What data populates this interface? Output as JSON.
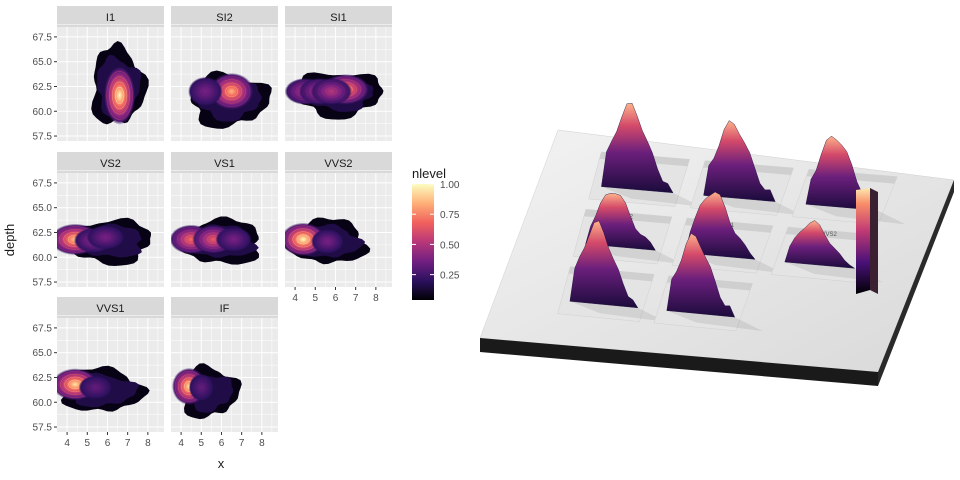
{
  "chart_data": [
    {
      "type": "heatmap",
      "kind": "faceted 2D density contours (filled)",
      "xlabel": "x",
      "ylabel": "depth",
      "xticks": [
        4,
        5,
        6,
        7,
        8
      ],
      "yticks": [
        57.5,
        60.0,
        62.5,
        65.0,
        67.5
      ],
      "xlim": [
        3.5,
        8.8
      ],
      "ylim": [
        57,
        68.5
      ],
      "grid": true,
      "legend": {
        "title": "nlevel",
        "ticks": [
          0.25,
          0.5,
          0.75,
          1.0
        ],
        "tick_labels": [
          "0.25",
          "0.50",
          "0.75",
          "1.00"
        ],
        "placement": "right",
        "colors": [
          "#000004",
          "#2c115f",
          "#721f81",
          "#b73779",
          "#f1605d",
          "#feb078",
          "#fcfdbf"
        ]
      },
      "facets": [
        {
          "label": "I1",
          "peaks": [
            {
              "x": 6.6,
              "y": 61.6,
              "level": 1.0
            }
          ],
          "extent": {
            "x": [
              5.2,
              7.8
            ],
            "y": [
              58.6,
              66.5
            ]
          }
        },
        {
          "label": "SI2",
          "peaks": [
            {
              "x": 6.5,
              "y": 62.0,
              "level": 0.85
            },
            {
              "x": 5.2,
              "y": 62.0,
              "level": 0.35
            }
          ],
          "extent": {
            "x": [
              4.4,
              8.3
            ],
            "y": [
              58.5,
              63.8
            ]
          }
        },
        {
          "label": "SI1",
          "peaks": [
            {
              "x": 6.5,
              "y": 62.2,
              "level": 0.8
            },
            {
              "x": 4.5,
              "y": 62.0,
              "level": 0.5
            },
            {
              "x": 5.2,
              "y": 62.0,
              "level": 0.5
            },
            {
              "x": 5.8,
              "y": 62.0,
              "level": 0.5
            }
          ],
          "extent": {
            "x": [
              4.0,
              8.3
            ],
            "y": [
              59.5,
              64.0
            ]
          }
        },
        {
          "label": "VS2",
          "peaks": [
            {
              "x": 4.4,
              "y": 61.8,
              "level": 0.9
            },
            {
              "x": 5.3,
              "y": 61.7,
              "level": 0.4
            },
            {
              "x": 5.9,
              "y": 62.0,
              "level": 0.35
            }
          ],
          "extent": {
            "x": [
              3.9,
              8.2
            ],
            "y": [
              59.4,
              63.8
            ]
          }
        },
        {
          "label": "VS1",
          "peaks": [
            {
              "x": 4.5,
              "y": 61.8,
              "level": 0.7
            },
            {
              "x": 5.6,
              "y": 61.8,
              "level": 0.65
            },
            {
              "x": 6.6,
              "y": 61.8,
              "level": 0.35
            }
          ],
          "extent": {
            "x": [
              3.9,
              8.0
            ],
            "y": [
              59.3,
              63.8
            ]
          }
        },
        {
          "label": "VVS2",
          "peaks": [
            {
              "x": 4.4,
              "y": 61.8,
              "level": 1.0
            },
            {
              "x": 5.6,
              "y": 61.6,
              "level": 0.35
            }
          ],
          "extent": {
            "x": [
              3.8,
              7.5
            ],
            "y": [
              59.3,
              63.8
            ]
          }
        },
        {
          "label": "VVS1",
          "peaks": [
            {
              "x": 4.4,
              "y": 61.8,
              "level": 0.95
            },
            {
              "x": 5.4,
              "y": 61.5,
              "level": 0.3
            }
          ],
          "extent": {
            "x": [
              3.8,
              7.7
            ],
            "y": [
              59.0,
              63.4
            ]
          }
        },
        {
          "label": "IF",
          "peaks": [
            {
              "x": 4.4,
              "y": 61.6,
              "level": 0.95
            },
            {
              "x": 5.0,
              "y": 61.5,
              "level": 0.3
            }
          ],
          "extent": {
            "x": [
              3.9,
              6.8
            ],
            "y": [
              58.5,
              63.6
            ]
          }
        }
      ]
    },
    {
      "type": "other",
      "kind": "3D perspective rendering of the same faceted density plot (rayshader-style)",
      "view": "3D oblique",
      "facets": [
        "I1",
        "SI2",
        "SI1",
        "VS2",
        "VS1",
        "VVS2",
        "VVS1",
        "IF"
      ]
    }
  ]
}
